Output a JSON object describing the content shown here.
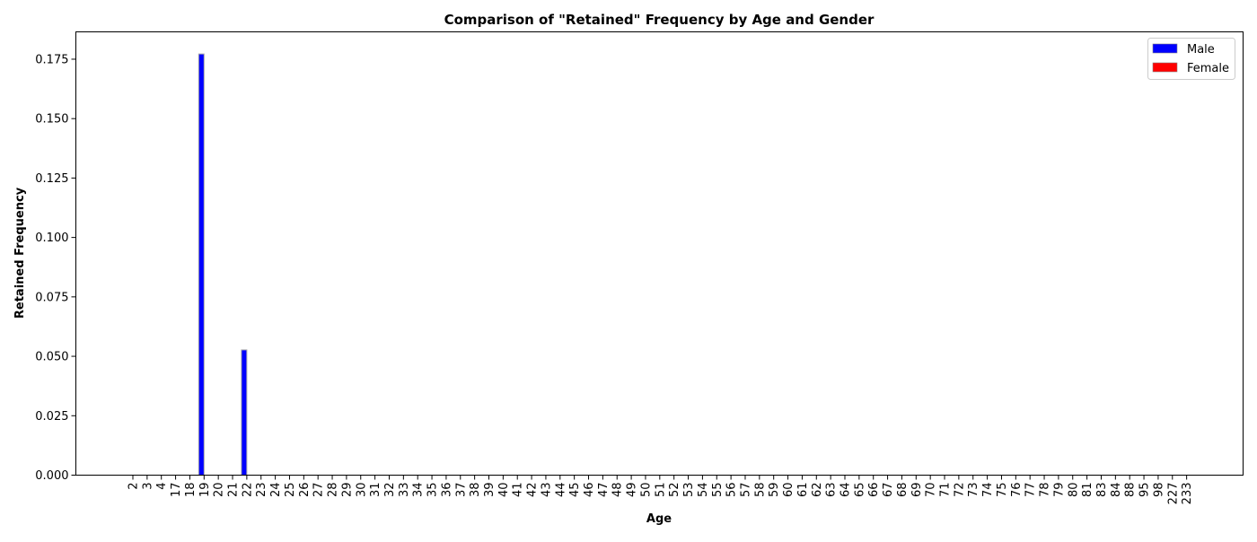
{
  "chart_data": {
    "type": "bar",
    "title": "Comparison of \"Retained\" Frequency by Age and Gender",
    "xlabel": "Age",
    "ylabel": "Retained Frequency",
    "categories": [
      "2",
      "3",
      "4",
      "17",
      "18",
      "19",
      "20",
      "21",
      "22",
      "23",
      "24",
      "25",
      "26",
      "27",
      "28",
      "29",
      "30",
      "31",
      "32",
      "33",
      "34",
      "35",
      "36",
      "37",
      "38",
      "39",
      "40",
      "41",
      "42",
      "43",
      "44",
      "45",
      "46",
      "47",
      "48",
      "49",
      "50",
      "51",
      "52",
      "53",
      "54",
      "55",
      "56",
      "57",
      "58",
      "59",
      "60",
      "61",
      "62",
      "63",
      "64",
      "65",
      "66",
      "67",
      "68",
      "69",
      "70",
      "71",
      "72",
      "73",
      "74",
      "75",
      "76",
      "77",
      "78",
      "79",
      "80",
      "81",
      "83",
      "84",
      "88",
      "95",
      "98",
      "227",
      "233"
    ],
    "series": [
      {
        "name": "Male",
        "color": "#0000ff",
        "values": [
          0,
          0,
          0,
          0,
          0,
          0.1772,
          0,
          0,
          0.0527,
          0,
          0,
          0,
          0,
          0,
          0,
          0,
          0,
          0,
          0,
          0,
          0,
          0,
          0,
          0,
          0,
          0,
          0,
          0,
          0,
          0,
          0,
          0,
          0,
          0,
          0,
          0,
          0,
          0,
          0,
          0,
          0,
          0,
          0,
          0,
          0,
          0,
          0,
          0,
          0,
          0,
          0,
          0,
          0,
          0,
          0,
          0,
          0,
          0,
          0,
          0,
          0,
          0,
          0,
          0,
          0,
          0,
          0,
          0,
          0,
          0,
          0,
          0,
          0,
          0,
          0
        ]
      },
      {
        "name": "Female",
        "color": "#ff0000",
        "values": [
          0,
          0,
          0,
          0,
          0,
          0,
          0,
          0,
          0,
          0,
          0,
          0,
          0,
          0,
          0,
          0,
          0,
          0,
          0,
          0,
          0,
          0,
          0,
          0,
          0,
          0,
          0,
          0,
          0,
          0,
          0,
          0,
          0,
          0,
          0,
          0,
          0,
          0,
          0,
          0,
          0,
          0,
          0,
          0,
          0,
          0,
          0,
          0,
          0,
          0,
          0,
          0,
          0,
          0,
          0,
          0,
          0,
          0,
          0,
          0,
          0,
          0,
          0,
          0,
          0,
          0,
          0,
          0,
          0,
          0,
          0,
          0,
          0,
          0,
          0
        ]
      }
    ],
    "ylim": [
      0,
      0.1865
    ],
    "yticks": [
      "0.000",
      "0.025",
      "0.050",
      "0.075",
      "0.100",
      "0.125",
      "0.150",
      "0.175"
    ],
    "legend_position": "top-right",
    "grid": false
  }
}
